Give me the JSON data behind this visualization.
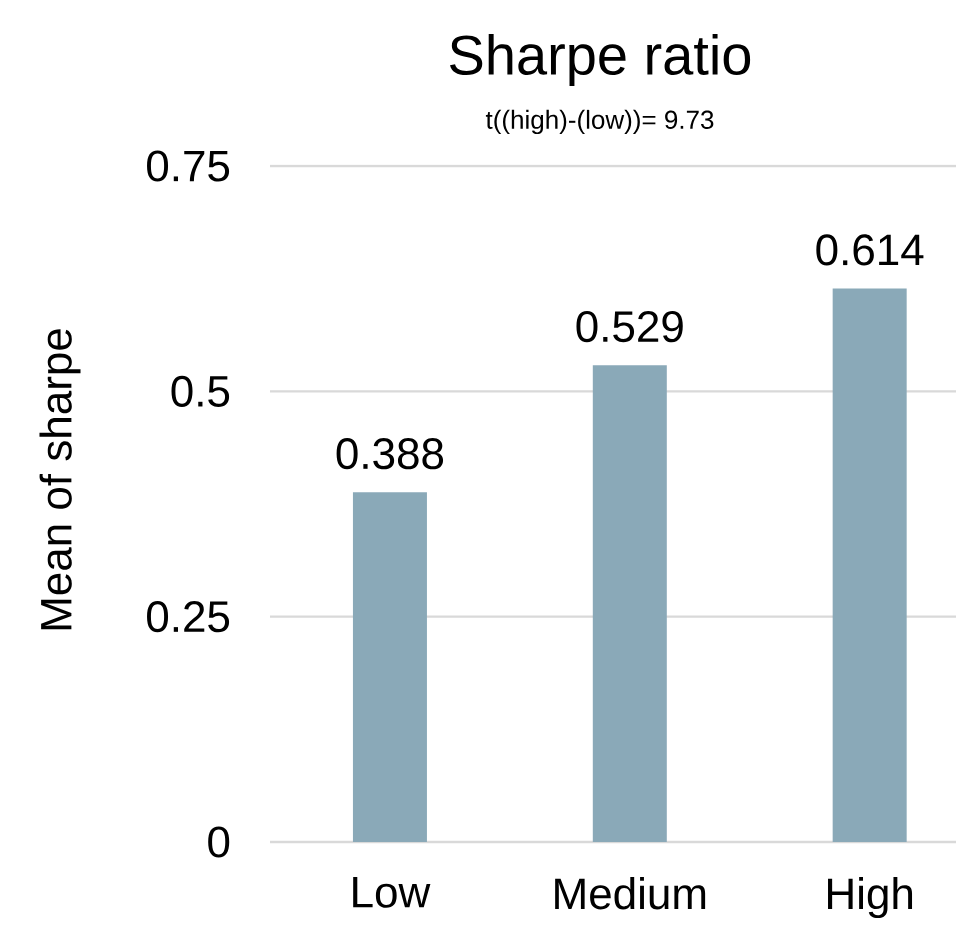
{
  "chart_data": {
    "type": "bar",
    "title": "Sharpe ratio",
    "subtitle": "t((high)-(low))= 9.73",
    "ylabel": "Mean of sharpe",
    "categories": [
      "Low",
      "Medium",
      "High"
    ],
    "values": [
      0.388,
      0.529,
      0.614
    ],
    "color": "#8aa9b8",
    "ylim": [
      0,
      0.75
    ],
    "yticks": [
      0,
      0.25,
      0.5,
      0.75
    ],
    "grid": "y",
    "data_labels": true
  }
}
